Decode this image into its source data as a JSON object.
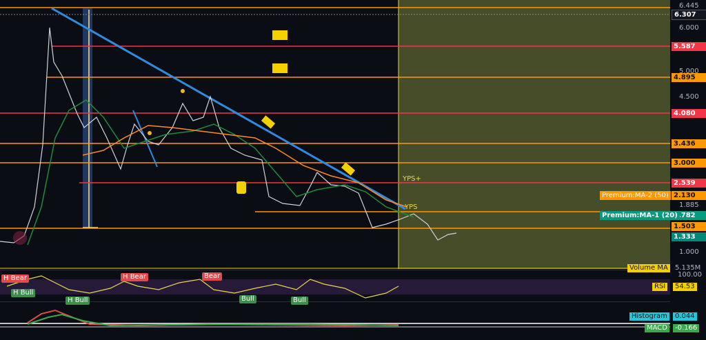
{
  "price_axis": [
    "6.445",
    "6.307",
    "6.000",
    "5.587",
    "5.000",
    "4.895",
    "4.500",
    "4.080",
    "3.436",
    "3.000",
    "2.539",
    "2.130",
    "1.885",
    "1.782",
    "1.503",
    "1.333",
    "1.000"
  ],
  "ma_labels": [
    "Premium:MA-2 (50)",
    "Premium:MA-1 (20)"
  ],
  "chart_marks": [
    "YPS+",
    "YPS"
  ],
  "signals": [
    "H Bear",
    "H Bull",
    "H Bull",
    "H Bear",
    "Bear",
    "Bull",
    "Bull"
  ],
  "volume": {
    "name": "Volume MA",
    "value": "5.135M"
  },
  "rsi": {
    "top": "100.00",
    "name": "RSI",
    "value": "54.53"
  },
  "macd": {
    "histogram": "Histogram",
    "histogram_value": "0.044",
    "name": "MACD",
    "value": "-0.166"
  }
}
